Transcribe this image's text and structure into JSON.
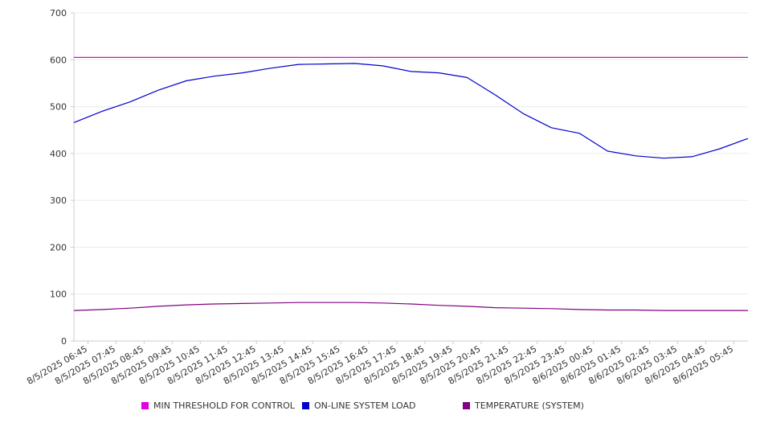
{
  "chart_data": {
    "type": "line",
    "title": "",
    "xlabel": "",
    "ylabel": "",
    "ylim": [
      0,
      700
    ],
    "y_ticks": [
      0,
      100,
      200,
      300,
      400,
      500,
      600,
      700
    ],
    "x_tick_labels": [
      "8/5/2025 06:45",
      "8/5/2025 07:45",
      "8/5/2025 08:45",
      "8/5/2025 09:45",
      "8/5/2025 10:45",
      "8/5/2025 11:45",
      "8/5/2025 12:45",
      "8/5/2025 13:45",
      "8/5/2025 14:45",
      "8/5/2025 15:45",
      "8/5/2025 16:45",
      "8/5/2025 17:45",
      "8/5/2025 18:45",
      "8/5/2025 19:45",
      "8/5/2025 20:45",
      "8/5/2025 21:45",
      "8/5/2025 22:45",
      "8/5/2025 23:45",
      "8/6/2025 00:45",
      "8/6/2025 01:45",
      "8/6/2025 02:45",
      "8/6/2025 03:45",
      "8/6/2025 04:45",
      "8/6/2025 05:45"
    ],
    "grid": "horizontal",
    "legend_position": "bottom",
    "series": [
      {
        "name": "MIN THRESHOLD FOR CONTROL",
        "color": "#e000e0",
        "values": [
          605,
          605,
          605,
          605,
          605,
          605,
          605,
          605,
          605,
          605,
          605,
          605,
          605,
          605,
          605,
          605,
          605,
          605,
          605,
          605,
          605,
          605,
          605,
          605,
          605
        ]
      },
      {
        "name": "ON-LINE SYSTEM LOAD",
        "color": "#0000cc",
        "values": [
          466,
          490,
          510,
          535,
          555,
          565,
          572,
          582,
          590,
          591,
          592,
          587,
          575,
          572,
          562,
          525,
          485,
          455,
          443,
          405,
          395,
          390,
          393,
          410,
          432
        ]
      },
      {
        "name": "TEMPERATURE (SYSTEM)",
        "color": "#800080",
        "values": [
          65,
          67,
          70,
          74,
          77,
          79,
          80,
          81,
          82,
          82,
          82,
          81,
          79,
          76,
          74,
          71,
          70,
          69,
          67,
          66,
          66,
          65,
          65,
          65,
          65
        ]
      }
    ]
  }
}
